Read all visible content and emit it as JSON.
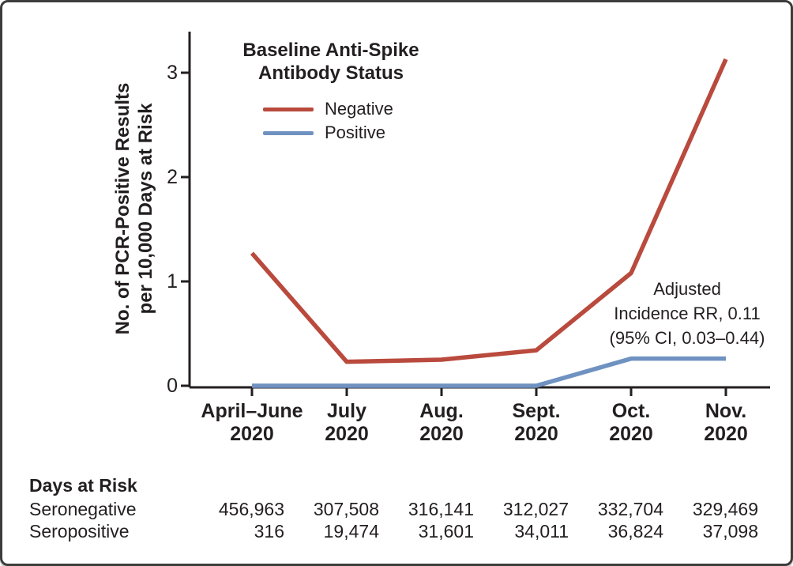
{
  "y_axis_label": {
    "line1": "No. of PCR-Positive Results",
    "line2": "per 10,000 Days at Risk"
  },
  "legend": {
    "title_line1": "Baseline Anti-Spike",
    "title_line2": "Antibody Status"
  },
  "annotation": {
    "line1": "Adjusted",
    "line2": "Incidence RR, 0.11",
    "line3": "(95% CI, 0.03–0.44)"
  },
  "chart_data": {
    "type": "line",
    "title": "",
    "xlabel": "",
    "ylabel": "No. of PCR-Positive Results per 10,000 Days at Risk",
    "categories": [
      "April–June 2020",
      "July 2020",
      "Aug. 2020",
      "Sept. 2020",
      "Oct. 2020",
      "Nov. 2020"
    ],
    "category_labels": [
      [
        "April–June",
        "2020"
      ],
      [
        "July",
        "2020"
      ],
      [
        "Aug.",
        "2020"
      ],
      [
        "Sept.",
        "2020"
      ],
      [
        "Oct.",
        "2020"
      ],
      [
        "Nov.",
        "2020"
      ]
    ],
    "y_ticks": [
      0,
      1,
      2,
      3
    ],
    "ylim": [
      0,
      3.4
    ],
    "grid": false,
    "legend_position": "top-left-inside",
    "series": [
      {
        "name": "Negative",
        "color": "#b94a3d",
        "values": [
          1.27,
          0.23,
          0.25,
          0.34,
          1.08,
          3.13
        ]
      },
      {
        "name": "Positive",
        "color": "#6f92c1",
        "values": [
          0,
          0,
          0,
          0,
          0.26,
          0.26
        ]
      }
    ]
  },
  "table": {
    "header": "Days at Risk",
    "rows": [
      {
        "label": "Seronegative",
        "values": [
          "456,963",
          "307,508",
          "316,141",
          "312,027",
          "332,704",
          "329,469"
        ]
      },
      {
        "label": "Seropositive",
        "values": [
          "316",
          "19,474",
          "31,601",
          "34,011",
          "36,824",
          "37,098"
        ]
      }
    ]
  },
  "colors": {
    "axis": "#231f20",
    "text": "#231f20",
    "negative_line": "#b94a3d",
    "positive_line": "#6f92c1"
  }
}
